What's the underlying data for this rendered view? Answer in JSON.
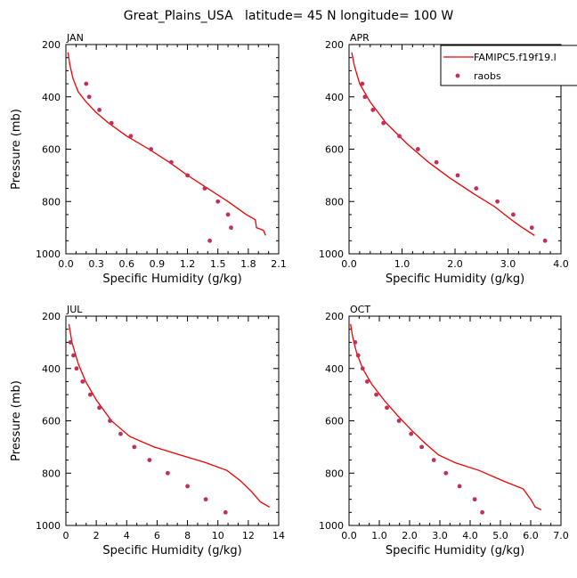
{
  "figure": {
    "title": "Great_Plains_USA   latitude= 45 N longitude= 100 W"
  },
  "colors": {
    "model": "#ee0000",
    "obs": "#c0305a",
    "axis": "#000000",
    "background": "#ffffff"
  },
  "chart_data": [
    {
      "type": "line",
      "panel": "JAN",
      "xlabel": "Specific Humidity (g/kg)",
      "ylabel": "Pressure (mb)",
      "xlim": [
        0,
        2.1
      ],
      "ylim": [
        1000,
        200
      ],
      "xticks": [
        0.0,
        0.3,
        0.6,
        0.9,
        1.2,
        1.5,
        1.8,
        2.1
      ],
      "xtick_labels": [
        "0.0",
        "0.3",
        "0.6",
        "0.9",
        "1.2",
        "1.5",
        "1.8",
        "2.1"
      ],
      "yticks": [
        200,
        400,
        600,
        800,
        1000
      ],
      "ytick_labels": [
        "200",
        "400",
        "600",
        "800",
        "1000"
      ],
      "legend": null,
      "series": [
        {
          "kind": "line",
          "x": [
            0.02,
            0.04,
            0.07,
            0.12,
            0.2,
            0.3,
            0.42,
            0.6,
            0.82,
            1.02,
            1.2,
            1.4,
            1.6,
            1.78,
            1.87,
            1.88,
            1.95,
            1.97
          ],
          "y": [
            230,
            280,
            330,
            380,
            420,
            460,
            500,
            550,
            600,
            650,
            700,
            750,
            800,
            850,
            870,
            900,
            910,
            930
          ]
        },
        {
          "kind": "scatter",
          "x": [
            0.2,
            0.23,
            0.33,
            0.45,
            0.64,
            0.84,
            1.04,
            1.2,
            1.37,
            1.5,
            1.6,
            1.63,
            1.42
          ],
          "y": [
            350,
            400,
            450,
            500,
            550,
            600,
            650,
            700,
            750,
            800,
            850,
            900,
            950
          ]
        }
      ]
    },
    {
      "type": "line",
      "panel": "APR",
      "xlabel": "Specific Humidity (g/kg)",
      "ylabel": "",
      "xlim": [
        0,
        4.0
      ],
      "ylim": [
        1000,
        200
      ],
      "xticks": [
        0.0,
        1.0,
        2.0,
        3.0,
        4.0
      ],
      "xtick_labels": [
        "0.0",
        "1.0",
        "2.0",
        "3.0",
        "4.0"
      ],
      "yticks": [
        200,
        400,
        600,
        800,
        1000
      ],
      "ytick_labels": [
        "200",
        "400",
        "600",
        "800",
        "1000"
      ],
      "legend": {
        "position": "top-right",
        "entries": [
          "FAMIPC5.f19f19.l",
          "raobs"
        ]
      },
      "series": [
        {
          "name": "FAMIPC5.f19f19.l",
          "kind": "line",
          "x": [
            0.05,
            0.1,
            0.2,
            0.4,
            0.7,
            1.1,
            1.5,
            1.9,
            2.35,
            2.75,
            3.0,
            3.2,
            3.35,
            3.5
          ],
          "y": [
            230,
            280,
            350,
            420,
            500,
            580,
            650,
            710,
            770,
            820,
            860,
            890,
            910,
            930
          ]
        },
        {
          "name": "raobs",
          "kind": "scatter",
          "x": [
            0.25,
            0.3,
            0.45,
            0.65,
            0.95,
            1.3,
            1.65,
            2.05,
            2.4,
            2.8,
            3.1,
            3.45,
            3.7
          ],
          "y": [
            350,
            400,
            450,
            500,
            550,
            600,
            650,
            700,
            750,
            800,
            850,
            900,
            950
          ]
        }
      ]
    },
    {
      "type": "line",
      "panel": "JUL",
      "xlabel": "Specific Humidity (g/kg)",
      "ylabel": "Pressure (mb)",
      "xlim": [
        0,
        14
      ],
      "ylim": [
        1000,
        200
      ],
      "xticks": [
        0,
        2,
        4,
        6,
        8,
        10,
        12,
        14
      ],
      "xtick_labels": [
        "0",
        "2",
        "4",
        "6",
        "8",
        "10",
        "12",
        "14"
      ],
      "yticks": [
        200,
        400,
        600,
        800,
        1000
      ],
      "ytick_labels": [
        "200",
        "400",
        "600",
        "800",
        "1000"
      ],
      "legend": null,
      "series": [
        {
          "kind": "line",
          "x": [
            0.2,
            0.4,
            0.8,
            1.3,
            2.0,
            3.0,
            4.2,
            5.8,
            7.5,
            9.2,
            10.6,
            11.5,
            12.2,
            12.8,
            13.4
          ],
          "y": [
            230,
            300,
            380,
            450,
            520,
            600,
            660,
            700,
            730,
            760,
            790,
            830,
            870,
            910,
            930
          ]
        },
        {
          "kind": "scatter",
          "x": [
            0.3,
            0.5,
            0.7,
            1.1,
            1.6,
            2.2,
            2.9,
            3.6,
            4.5,
            5.5,
            6.7,
            8.0,
            9.2,
            10.5
          ],
          "y": [
            300,
            350,
            400,
            450,
            500,
            550,
            600,
            650,
            700,
            750,
            800,
            850,
            900,
            950
          ]
        }
      ]
    },
    {
      "type": "line",
      "panel": "OCT",
      "xlabel": "Specific Humidity (g/kg)",
      "ylabel": "",
      "xlim": [
        0,
        7.0
      ],
      "ylim": [
        1000,
        200
      ],
      "xticks": [
        0.0,
        1.0,
        2.0,
        3.0,
        4.0,
        5.0,
        6.0,
        7.0
      ],
      "xtick_labels": [
        "0.0",
        "1.0",
        "2.0",
        "3.0",
        "4.0",
        "5.0",
        "6.0",
        "7.0"
      ],
      "yticks": [
        200,
        400,
        600,
        800,
        1000
      ],
      "ytick_labels": [
        "200",
        "400",
        "600",
        "800",
        "1000"
      ],
      "legend": null,
      "series": [
        {
          "kind": "line",
          "x": [
            0.05,
            0.12,
            0.25,
            0.45,
            0.75,
            1.15,
            1.6,
            2.1,
            2.55,
            2.95,
            3.5,
            4.3,
            5.1,
            5.75,
            6.0,
            6.15,
            6.35
          ],
          "y": [
            230,
            280,
            340,
            400,
            460,
            520,
            580,
            640,
            690,
            730,
            760,
            790,
            830,
            860,
            900,
            930,
            940
          ]
        },
        {
          "kind": "scatter",
          "x": [
            0.2,
            0.3,
            0.45,
            0.6,
            0.9,
            1.25,
            1.65,
            2.05,
            2.4,
            2.8,
            3.2,
            3.65,
            4.15,
            4.4
          ],
          "y": [
            300,
            350,
            400,
            450,
            500,
            550,
            600,
            650,
            700,
            750,
            800,
            850,
            900,
            950
          ]
        }
      ]
    }
  ]
}
